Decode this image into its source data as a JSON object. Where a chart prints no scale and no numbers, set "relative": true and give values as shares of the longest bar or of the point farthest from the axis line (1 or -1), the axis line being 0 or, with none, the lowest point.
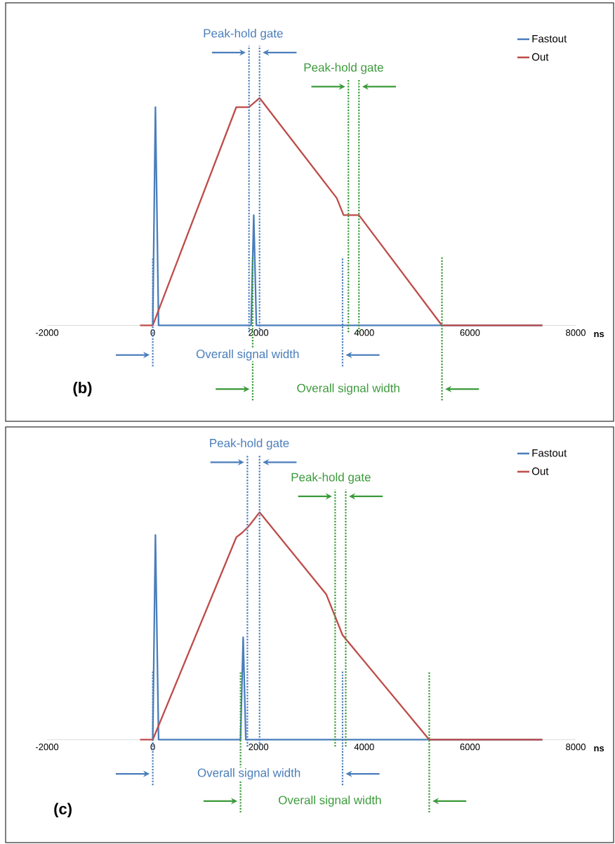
{
  "chart_data": [
    {
      "type": "line",
      "relative": true,
      "xlim": [
        -2000,
        8000
      ],
      "xticks": [
        -2000,
        0,
        2000,
        4000,
        6000,
        8000
      ],
      "xlabel": "ns",
      "legend": "top right",
      "series": [
        {
          "name": "Fastout",
          "color": "#4a7ebb",
          "x": [
            0,
            50,
            110,
            1860,
            1910,
            1960,
            7370
          ],
          "values": [
            0,
            0.96,
            0,
            0,
            0.485,
            0,
            0
          ]
        },
        {
          "name": "Out",
          "color": "#be4b48",
          "x": [
            -240,
            0,
            1580,
            1820,
            2020,
            3480,
            3610,
            3900,
            5470,
            7370
          ],
          "values": [
            0,
            0,
            0.96,
            0.96,
            1,
            0.56,
            0.485,
            0.485,
            0,
            0
          ]
        }
      ],
      "ref_lines": [
        {
          "axis": "x",
          "value": 1820,
          "color": "#4a7ebb",
          "line_style": "dotted"
        },
        {
          "axis": "x",
          "value": 2020,
          "color": "#4a7ebb",
          "line_style": "dotted"
        },
        {
          "axis": "x",
          "value": 3700,
          "color": "#3a9a3a",
          "line_style": "dotted"
        },
        {
          "axis": "x",
          "value": 3900,
          "color": "#3a9a3a",
          "line_style": "dotted"
        },
        {
          "axis": "x",
          "value": 0,
          "color": "#4a7ebb",
          "line_style": "dotted"
        },
        {
          "axis": "x",
          "value": 3590,
          "color": "#4a7ebb",
          "line_style": "dotted"
        },
        {
          "axis": "x",
          "value": 1890,
          "color": "#3a9a3a",
          "line_style": "dotted"
        },
        {
          "axis": "x",
          "value": 5470,
          "color": "#3a9a3a",
          "line_style": "dotted"
        }
      ],
      "annotations": [
        "Peak-hold gate",
        "Peak-hold gate",
        "Overall signal width",
        "Overall signal width",
        "(b)"
      ]
    },
    {
      "type": "line",
      "relative": true,
      "xlim": [
        -2000,
        8000
      ],
      "xticks": [
        -2000,
        0,
        2000,
        4000,
        6000,
        8000
      ],
      "xlabel": "ns",
      "legend": "top right",
      "series": [
        {
          "name": "Fastout",
          "color": "#4a7ebb",
          "x": [
            0,
            50,
            110,
            1660,
            1710,
            1760,
            7370
          ],
          "values": [
            0,
            0.9,
            0,
            0,
            0.45,
            0,
            0
          ]
        },
        {
          "name": "Out",
          "color": "#be4b48",
          "x": [
            -240,
            0,
            1580,
            1690,
            1820,
            2020,
            3280,
            3590,
            5230,
            7370
          ],
          "values": [
            0,
            0,
            0.89,
            0.91,
            0.94,
            1,
            0.64,
            0.46,
            0,
            0
          ]
        }
      ],
      "ref_lines": [
        {
          "axis": "x",
          "value": 1790,
          "color": "#4a7ebb",
          "line_style": "dotted"
        },
        {
          "axis": "x",
          "value": 2020,
          "color": "#4a7ebb",
          "line_style": "dotted"
        },
        {
          "axis": "x",
          "value": 3450,
          "color": "#3a9a3a",
          "line_style": "dotted"
        },
        {
          "axis": "x",
          "value": 3650,
          "color": "#3a9a3a",
          "line_style": "dotted"
        },
        {
          "axis": "x",
          "value": 0,
          "color": "#4a7ebb",
          "line_style": "dotted"
        },
        {
          "axis": "x",
          "value": 3590,
          "color": "#4a7ebb",
          "line_style": "dotted"
        },
        {
          "axis": "x",
          "value": 1660,
          "color": "#3a9a3a",
          "line_style": "dotted"
        },
        {
          "axis": "x",
          "value": 5230,
          "color": "#3a9a3a",
          "line_style": "dotted"
        }
      ],
      "annotations": [
        "Peak-hold gate",
        "Peak-hold gate",
        "Overall signal width",
        "Overall signal width",
        "(c)"
      ]
    }
  ]
}
